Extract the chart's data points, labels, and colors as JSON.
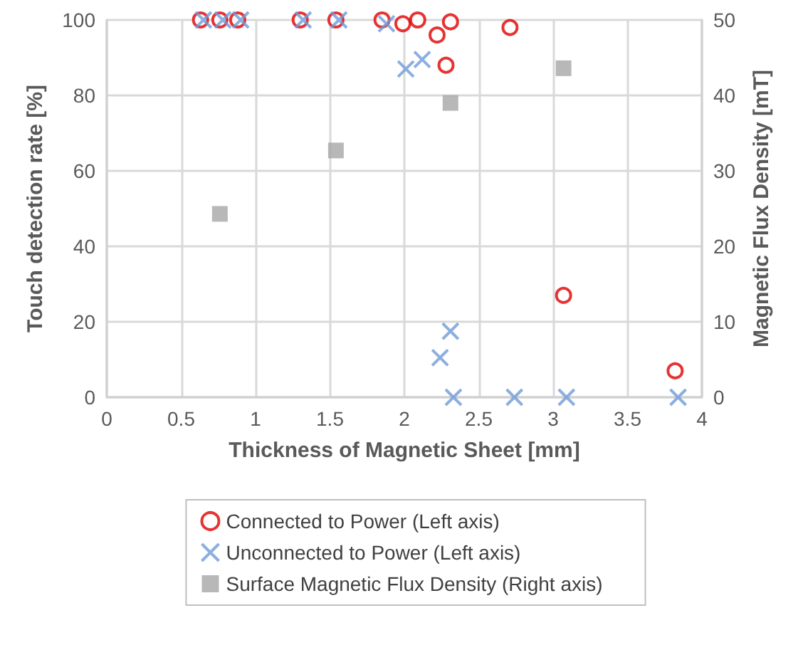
{
  "chart_data": {
    "type": "scatter",
    "xlabel": "Thickness of Magnetic Sheet [mm]",
    "ylabel": "Touch detection rate [%]",
    "y2label": "Magnetic Flux Density [mT]",
    "xlim": [
      0,
      4
    ],
    "xticks": [
      0,
      0.5,
      1,
      1.5,
      2,
      2.5,
      3,
      3.5,
      4
    ],
    "ylim": [
      0,
      100
    ],
    "yticks": [
      0,
      20,
      40,
      60,
      80,
      100
    ],
    "y2lim": [
      0,
      50
    ],
    "y2ticks": [
      0,
      10,
      20,
      30,
      40,
      50
    ],
    "grid": true,
    "legend": "bottom",
    "series": [
      {
        "name": "Connected to Power (Left axis)",
        "color": "#e00000",
        "marker": "circle",
        "x": [
          0.63,
          0.76,
          0.88,
          1.3,
          1.54,
          1.85,
          1.99,
          2.09,
          2.22,
          2.31,
          2.28,
          2.71,
          3.07,
          3.82
        ],
        "values": [
          100,
          100,
          100,
          100,
          100,
          100,
          99,
          100,
          96,
          99.5,
          88,
          98,
          27,
          7
        ]
      },
      {
        "name": "Unconnected to Power (Left axis)",
        "color": "#6f9bd8",
        "marker": "cross",
        "x": [
          0.65,
          0.78,
          0.9,
          1.32,
          1.56,
          1.88,
          2.01,
          2.12,
          2.24,
          2.31,
          2.33,
          2.74,
          3.09,
          3.84
        ],
        "values": [
          100,
          100,
          100,
          100,
          100,
          99,
          87,
          89.5,
          10.5,
          17.5,
          0,
          0,
          0,
          0
        ]
      },
      {
        "name": "Surface Magnetic Flux Density (Right axis)",
        "color": "#a6a6a6",
        "marker": "square",
        "axis": "y2",
        "x": [
          0.76,
          1.54,
          2.31,
          3.07
        ],
        "values": [
          24.3,
          32.7,
          39,
          43.6
        ]
      }
    ]
  }
}
